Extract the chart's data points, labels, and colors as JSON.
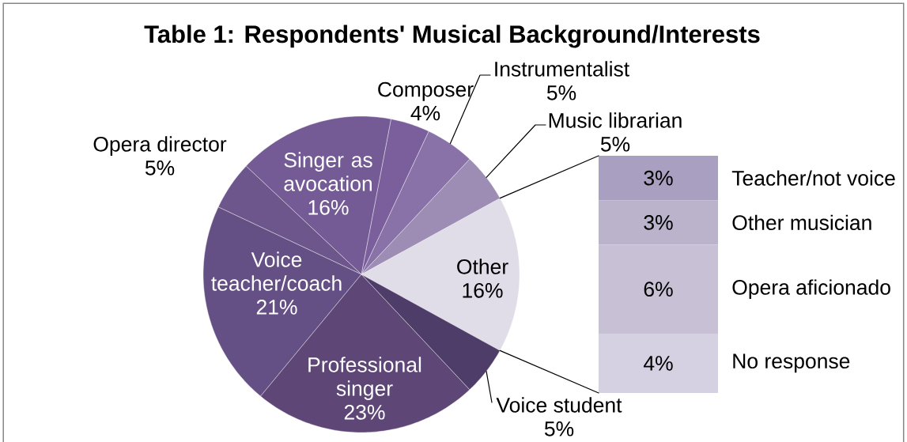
{
  "chart_data": [
    {
      "type": "pie",
      "title": "Table 1: Respondents' Musical Background/Interests",
      "categories": [
        "Other",
        "Music librarian",
        "Instrumentalist",
        "Composer",
        "Singer as avocation",
        "Opera director",
        "Voice teacher/coach",
        "Professional singer",
        "Voice student"
      ],
      "values": [
        16,
        5,
        5,
        4,
        16,
        5,
        21,
        23,
        5
      ],
      "value_labels": [
        "16%",
        "5%",
        "5%",
        "4%",
        "16%",
        "5%",
        "21%",
        "23%",
        "5%"
      ],
      "colors": [
        "#e0dce8",
        "#9d8db4",
        "#8872a8",
        "#7a5f9c",
        "#745b95",
        "#6d568c",
        "#655085",
        "#5e4777",
        "#4e3d68"
      ]
    },
    {
      "type": "bar",
      "stacked": true,
      "categories": [
        null
      ],
      "series": [
        {
          "name": "No response",
          "color": "#d6d1e2",
          "values": [
            4
          ],
          "value_labels": [
            "4%"
          ]
        },
        {
          "name": "Opera aficionado",
          "color": "#c8c1d6",
          "values": [
            6
          ],
          "value_labels": [
            "6%"
          ]
        },
        {
          "name": "Other musician",
          "color": "#bbb2cb",
          "values": [
            3
          ],
          "value_labels": [
            "3%"
          ]
        },
        {
          "name": "Teacher/not voice",
          "color": "#a99fc0",
          "values": [
            3
          ],
          "value_labels": [
            "3%"
          ]
        }
      ]
    }
  ]
}
